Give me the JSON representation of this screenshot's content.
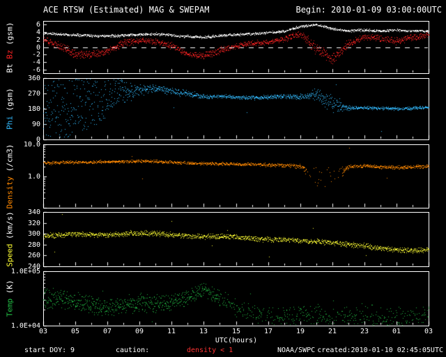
{
  "header": {
    "title": "ACE RTSW (Estimated) MAG & SWEPAM",
    "begin": "Begin: 2010-01-09 03:00:00UTC"
  },
  "x_axis": {
    "label": "UTC(hours)",
    "tick_labels": [
      "03",
      "05",
      "07",
      "09",
      "11",
      "13",
      "15",
      "17",
      "19",
      "21",
      "23",
      "01",
      "03"
    ]
  },
  "footer": {
    "start_doy_label": "start DOY:",
    "start_doy_value": "9",
    "caution_label": "caution:",
    "caution_value": "density < 1",
    "caution_color": "#ff3333",
    "agency": "NOAA/SWPC",
    "created": "created:2010-01-10 02:45:05UTC"
  },
  "colors": {
    "background": "#000000",
    "frame": "#ffffff",
    "text": "#ffffff"
  },
  "chart_data": {
    "type": "scatter",
    "title": "ACE RTSW (Estimated) MAG & SWEPAM",
    "xlabel": "UTC(hours)",
    "x_range_hours": [
      3,
      27
    ],
    "sampling_minutes": 1,
    "anchor_hours": [
      3,
      4,
      5,
      6,
      7,
      8,
      9,
      10,
      11,
      12,
      13,
      14,
      15,
      16,
      17,
      18,
      19,
      20,
      21,
      22,
      23,
      24,
      25,
      26,
      27
    ],
    "panels": [
      {
        "name": "bt-bz",
        "ylabel_parts": [
          {
            "text": "Bt",
            "color": "#ffffff"
          },
          {
            "text": "Bz",
            "color": "#ff2222"
          },
          {
            "text": "(gsm)",
            "color": "#ffffff"
          }
        ],
        "scale": "linear",
        "ylim": [
          -7,
          7
        ],
        "zero_dashed_line": true,
        "yticks": [
          {
            "value": 6,
            "label": "6"
          },
          {
            "value": 4,
            "label": "4"
          },
          {
            "value": 2,
            "label": "2"
          },
          {
            "value": 0,
            "label": "0"
          },
          {
            "value": -2,
            "label": "-2"
          },
          {
            "value": -4,
            "label": "-4"
          },
          {
            "value": -6,
            "label": "-6"
          }
        ],
        "series": [
          {
            "name": "Bt",
            "color": "#ffffff",
            "values": [
              3.8,
              3.5,
              3.3,
              3.1,
              3.0,
              3.2,
              3.4,
              3.6,
              3.2,
              2.9,
              2.7,
              3.1,
              3.4,
              3.6,
              3.9,
              4.3,
              5.6,
              6.1,
              4.9,
              4.4,
              4.6,
              4.4,
              4.6,
              4.4,
              4.3
            ],
            "spread": 0.3
          },
          {
            "name": "Bz",
            "color": "#ff2222",
            "values": [
              2.0,
              0.5,
              -1.8,
              -2.0,
              -1.0,
              1.2,
              1.8,
              1.5,
              0.5,
              -2.0,
              -2.4,
              -0.8,
              0.4,
              1.0,
              1.5,
              2.2,
              3.6,
              -0.5,
              -3.3,
              1.0,
              2.8,
              2.4,
              1.6,
              2.8,
              3.3
            ],
            "spread": [
              0.8,
              1.0,
              0.9,
              0.8,
              0.9,
              0.8,
              0.6,
              0.6,
              0.8,
              0.7,
              0.7,
              0.8,
              0.6,
              0.6,
              0.6,
              0.6,
              0.9,
              1.5,
              1.2,
              1.0,
              0.6,
              0.7,
              0.8,
              0.7,
              0.6
            ]
          }
        ]
      },
      {
        "name": "phi",
        "ylabel_parts": [
          {
            "text": "Phi",
            "color": "#33bbff"
          },
          {
            "text": "(gsm)",
            "color": "#ffffff"
          }
        ],
        "scale": "linear",
        "ylim": [
          0,
          360
        ],
        "yticks": [
          {
            "value": 360,
            "label": "360"
          },
          {
            "value": 270,
            "label": "270"
          },
          {
            "value": 180,
            "label": "180"
          },
          {
            "value": 90,
            "label": "90"
          },
          {
            "value": 0,
            "label": "0"
          }
        ],
        "series": [
          {
            "name": "Phi",
            "color": "#33bbff",
            "values": [
              200,
              180,
              180,
              220,
              260,
              285,
              295,
              300,
              285,
              270,
              252,
              255,
              250,
              246,
              250,
              254,
              252,
              265,
              210,
              186,
              188,
              185,
              182,
              185,
              190
            ],
            "spread": [
              170,
              175,
              175,
              160,
              120,
              70,
              25,
              18,
              20,
              15,
              12,
              10,
              10,
              10,
              10,
              10,
              14,
              28,
              50,
              10,
              8,
              8,
              8,
              8,
              8
            ],
            "clamp": [
              2,
              358
            ],
            "outlier_prob": 0.003,
            "outlier_mag": 120
          }
        ]
      },
      {
        "name": "density",
        "ylabel_parts": [
          {
            "text": "Density",
            "color": "#ff8800"
          },
          {
            "text": "(/cm3)",
            "color": "#ffffff"
          }
        ],
        "scale": "log",
        "ylim": [
          0.1,
          10
        ],
        "yticks": [
          {
            "value": 10,
            "label": "10.0"
          },
          {
            "value": 1,
            "label": "1.0"
          },
          {
            "value": 0.1,
            "label": ""
          }
        ],
        "series": [
          {
            "name": "Density",
            "color": "#ff8800",
            "values": [
              2.6,
              2.7,
              2.8,
              2.8,
              2.9,
              2.9,
              3.0,
              2.9,
              2.8,
              2.6,
              2.5,
              2.5,
              2.4,
              2.4,
              2.3,
              2.2,
              2.1,
              0.9,
              0.9,
              2.0,
              2.1,
              2.0,
              1.9,
              2.0,
              2.1
            ],
            "spread": [
              0.04,
              0.04,
              0.04,
              0.04,
              0.04,
              0.04,
              0.04,
              0.04,
              0.04,
              0.04,
              0.04,
              0.04,
              0.04,
              0.04,
              0.05,
              0.05,
              0.06,
              0.28,
              0.3,
              0.07,
              0.05,
              0.05,
              0.05,
              0.05,
              0.05
            ],
            "sparse": [
              {
                "from": 19.4,
                "to": 21.6,
                "keep": 0.22
              }
            ],
            "outlier_prob": 0.002,
            "outlier_mag": 0.45
          }
        ]
      },
      {
        "name": "speed",
        "ylabel_parts": [
          {
            "text": "Speed",
            "color": "#ffff33"
          },
          {
            "text": "(km/s)",
            "color": "#ffffff"
          }
        ],
        "scale": "linear",
        "ylim": [
          240,
          340
        ],
        "yticks": [
          {
            "value": 340,
            "label": "340"
          },
          {
            "value": 320,
            "label": "320"
          },
          {
            "value": 300,
            "label": "300"
          },
          {
            "value": 280,
            "label": "280"
          },
          {
            "value": 260,
            "label": "260"
          },
          {
            "value": 240,
            "label": "240"
          }
        ],
        "series": [
          {
            "name": "Speed",
            "color": "#ffff33",
            "values": [
              296,
              298,
              300,
              299,
              298,
              300,
              302,
              301,
              298,
              296,
              295,
              296,
              294,
              292,
              290,
              289,
              288,
              286,
              284,
              281,
              278,
              274,
              271,
              269,
              272
            ],
            "spread": 4,
            "outlier_prob": 0.005,
            "outlier_mag": 30
          }
        ]
      },
      {
        "name": "temp",
        "ylabel_parts": [
          {
            "text": "Temp",
            "color": "#22bb44"
          },
          {
            "text": "(K)",
            "color": "#ffffff"
          }
        ],
        "scale": "log",
        "ylim": [
          10000,
          100000
        ],
        "yticks": [
          {
            "value": 100000,
            "label": "1.0E+05"
          },
          {
            "value": 10000,
            "label": "1.0E+04"
          }
        ],
        "series": [
          {
            "name": "Temp",
            "color": "#22bb44",
            "values": [
              32000,
              30000,
              27000,
              24000,
              22000,
              24000,
              27000,
              25000,
              27000,
              33000,
              46000,
              32000,
              21000,
              18000,
              16000,
              15000,
              16000,
              15000,
              13500,
              14500,
              15500,
              14500,
              14000,
              15000,
              16000
            ],
            "spread": [
              0.16,
              0.16,
              0.15,
              0.15,
              0.14,
              0.14,
              0.14,
              0.14,
              0.13,
              0.11,
              0.11,
              0.13,
              0.14,
              0.15,
              0.15,
              0.16,
              0.17,
              0.18,
              0.18,
              0.18,
              0.18,
              0.18,
              0.18,
              0.18,
              0.18
            ],
            "sparse": [
              {
                "from": 14,
                "to": 27,
                "keep": 0.55
              }
            ],
            "outlier_prob": 0.003,
            "outlier_mag": 0.3
          }
        ]
      }
    ]
  }
}
